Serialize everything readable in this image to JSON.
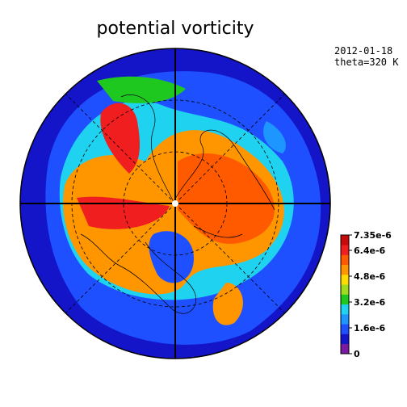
{
  "title": "potential vorticity",
  "date": "2012-01-18",
  "level": "theta=320 K",
  "colorbar": {
    "lim": [
      0,
      7.35e-06
    ],
    "ticks": [
      {
        "value": 7.35e-06,
        "label": "7.35e-6"
      },
      {
        "value": 6.4e-06,
        "label": "6.4e-6"
      },
      {
        "value": 4.8e-06,
        "label": "4.8e-6"
      },
      {
        "value": 3.2e-06,
        "label": "3.2e-6"
      },
      {
        "value": 1.6e-06,
        "label": "1.6e-6"
      },
      0
    ],
    "colors": [
      "#7a1aa0",
      "#1414c8",
      "#1e50ff",
      "#1e96ff",
      "#1ed2f0",
      "#1ec81e",
      "#a0dc1e",
      "#ffdc00",
      "#ff9600",
      "#ff5a00",
      "#f01e1e",
      "#c80a0a"
    ]
  }
}
